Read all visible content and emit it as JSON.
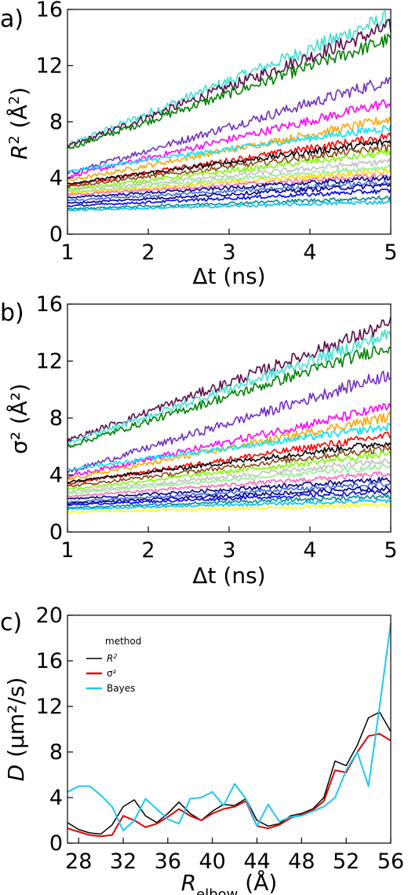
{
  "chart_data": [
    {
      "type": "line",
      "panel_label": "a)",
      "xlabel": "Δt (ns)",
      "ylabel": "R² (Å²)",
      "xlim": [
        1,
        5
      ],
      "ylim": [
        0,
        16
      ],
      "xticks": [
        "1",
        "2",
        "3",
        "4",
        "5"
      ],
      "yticks": [
        "0",
        "4",
        "8",
        "12",
        "16"
      ],
      "grid": false,
      "series": [
        {
          "color": "#40e0d0",
          "start": 6.3,
          "end": 15.5
        },
        {
          "color": "#5a0a4a",
          "start": 6.2,
          "end": 14.8
        },
        {
          "color": "#008000",
          "start": 6.1,
          "end": 13.9
        },
        {
          "color": "#7030c0",
          "start": 4.3,
          "end": 11.0
        },
        {
          "color": "#ff00ff",
          "start": 4.1,
          "end": 9.4
        },
        {
          "color": "#ffa500",
          "start": 3.8,
          "end": 8.2
        },
        {
          "color": "#00e5ff",
          "start": 4.5,
          "end": 7.6
        },
        {
          "color": "#ff0000",
          "start": 3.5,
          "end": 7.0
        },
        {
          "color": "#000000",
          "start": 3.6,
          "end": 6.6
        },
        {
          "color": "#8b4513",
          "start": 3.4,
          "end": 6.2
        },
        {
          "color": "#7cfc00",
          "start": 3.2,
          "end": 5.8
        },
        {
          "color": "#c0c0c0",
          "start": 3.1,
          "end": 5.2
        },
        {
          "color": "#90ee90",
          "start": 3.0,
          "end": 4.8
        },
        {
          "color": "#ffd700",
          "start": 2.9,
          "end": 4.5
        },
        {
          "color": "#ff69b4",
          "start": 2.8,
          "end": 4.2
        },
        {
          "color": "#00008b",
          "start": 2.6,
          "end": 4.0
        },
        {
          "color": "#4169e1",
          "start": 2.4,
          "end": 3.7
        },
        {
          "color": "#000080",
          "start": 2.2,
          "end": 3.5
        },
        {
          "color": "#0000ff",
          "start": 2.0,
          "end": 3.1
        },
        {
          "color": "#008b8b",
          "start": 1.8,
          "end": 2.6
        },
        {
          "color": "#00bfff",
          "start": 1.7,
          "end": 2.3
        }
      ]
    },
    {
      "type": "line",
      "panel_label": "b)",
      "xlabel": "Δt (ns)",
      "ylabel": "σ² (Å²)",
      "xlim": [
        1,
        5
      ],
      "ylim": [
        0,
        16
      ],
      "xticks": [
        "1",
        "2",
        "3",
        "4",
        "5"
      ],
      "yticks": [
        "0",
        "4",
        "8",
        "12",
        "16"
      ],
      "grid": false,
      "series": [
        {
          "color": "#5a0a4a",
          "start": 6.4,
          "end": 14.6
        },
        {
          "color": "#40e0d0",
          "start": 6.2,
          "end": 13.9
        },
        {
          "color": "#008000",
          "start": 6.0,
          "end": 13.1
        },
        {
          "color": "#7030c0",
          "start": 4.2,
          "end": 11.1
        },
        {
          "color": "#ff00ff",
          "start": 3.9,
          "end": 8.8
        },
        {
          "color": "#ffa500",
          "start": 3.7,
          "end": 8.1
        },
        {
          "color": "#00e5ff",
          "start": 4.4,
          "end": 7.4
        },
        {
          "color": "#ff0000",
          "start": 3.4,
          "end": 6.8
        },
        {
          "color": "#000000",
          "start": 3.5,
          "end": 6.3
        },
        {
          "color": "#8b4513",
          "start": 3.2,
          "end": 5.9
        },
        {
          "color": "#7cfc00",
          "start": 3.0,
          "end": 5.5
        },
        {
          "color": "#c0c0c0",
          "start": 2.8,
          "end": 5.0
        },
        {
          "color": "#90ee90",
          "start": 2.7,
          "end": 4.6
        },
        {
          "color": "#ff69b4",
          "start": 2.5,
          "end": 4.1
        },
        {
          "color": "#00008b",
          "start": 2.3,
          "end": 3.7
        },
        {
          "color": "#4169e1",
          "start": 2.1,
          "end": 3.4
        },
        {
          "color": "#000080",
          "start": 2.0,
          "end": 3.1
        },
        {
          "color": "#0000ff",
          "start": 1.9,
          "end": 2.8
        },
        {
          "color": "#008b8b",
          "start": 1.7,
          "end": 2.5
        },
        {
          "color": "#00bfff",
          "start": 1.6,
          "end": 2.2
        },
        {
          "color": "#ffff00",
          "start": 1.4,
          "end": 1.9
        }
      ]
    },
    {
      "type": "line",
      "panel_label": "c)",
      "xlabel": "R",
      "xlabel_sub": "elbow",
      "xlabel_unit": " (Å)",
      "ylabel": "D",
      "ylabel_unit": " (μm²/s)",
      "xlim": [
        27,
        56
      ],
      "ylim": [
        0,
        20
      ],
      "xticks": [
        "28",
        "32",
        "36",
        "40",
        "44",
        "48",
        "52",
        "56"
      ],
      "yticks": [
        "0",
        "4",
        "8",
        "12",
        "16",
        "20"
      ],
      "grid": false,
      "legend": {
        "title": "method",
        "placement": "top-left"
      },
      "x": [
        27,
        28,
        29,
        30,
        31,
        32,
        33,
        34,
        35,
        36,
        37,
        38,
        39,
        40,
        41,
        42,
        43,
        44,
        45,
        46,
        47,
        48,
        49,
        50,
        51,
        52,
        53,
        54,
        55,
        56
      ],
      "series": [
        {
          "name": "R²",
          "color": "#000000",
          "values": [
            1.8,
            1.2,
            0.9,
            0.8,
            1.6,
            3.2,
            3.8,
            2.4,
            1.8,
            2.6,
            3.6,
            2.6,
            2.0,
            2.8,
            3.4,
            3.3,
            3.9,
            2.0,
            1.5,
            1.7,
            2.4,
            2.6,
            3.0,
            4.0,
            7.2,
            6.8,
            8.6,
            11.0,
            11.5,
            9.8
          ]
        },
        {
          "name": "σ²",
          "color": "#e00000",
          "values": [
            1.3,
            1.0,
            0.7,
            0.6,
            0.7,
            2.4,
            2.0,
            1.4,
            1.7,
            2.3,
            3.0,
            2.4,
            2.0,
            2.6,
            3.0,
            3.2,
            3.7,
            1.5,
            1.3,
            1.6,
            2.2,
            2.5,
            2.9,
            3.7,
            6.4,
            6.2,
            8.0,
            9.4,
            9.6,
            9.0
          ]
        },
        {
          "name": "Bayes",
          "color": "#1ec8f0",
          "values": [
            4.5,
            5.0,
            5.0,
            4.2,
            3.2,
            1.1,
            2.0,
            3.9,
            3.0,
            2.1,
            1.7,
            3.9,
            4.0,
            4.5,
            3.3,
            5.2,
            3.9,
            1.5,
            3.4,
            1.9,
            2.3,
            2.4,
            2.8,
            3.2,
            4.0,
            6.4,
            8.0,
            5.0,
            12.0,
            19.3
          ]
        }
      ]
    }
  ]
}
